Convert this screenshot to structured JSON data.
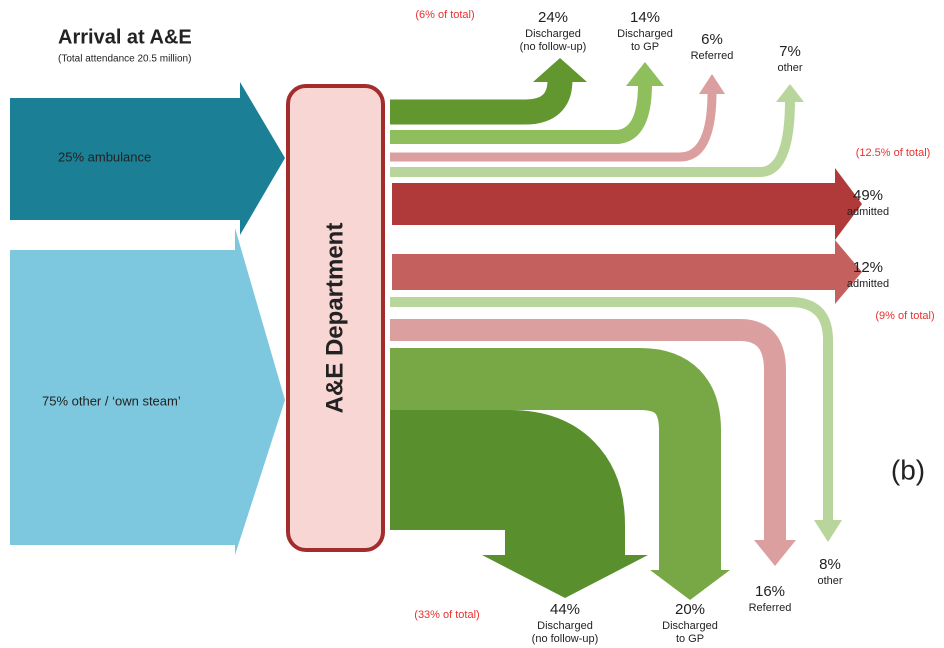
{
  "title": "Arrival at A&E",
  "subtitle": "(Total attendance 20.5 million)",
  "inputs": [
    "25% ambulance",
    "75% other / ‘own steam’"
  ],
  "department": "A&E Department",
  "panel_label": "(b)",
  "ambulance": {
    "notes": [
      "(6% of total)",
      "(12.5% of total)"
    ],
    "outcomes": [
      {
        "pct": "24%",
        "label": [
          "Discharged",
          "(no follow-up)"
        ]
      },
      {
        "pct": "14%",
        "label": [
          "Discharged",
          "to GP"
        ]
      },
      {
        "pct": "6%",
        "label": [
          "Referred"
        ]
      },
      {
        "pct": "7%",
        "label": [
          "other"
        ]
      },
      {
        "pct": "49%",
        "label": [
          "admitted"
        ]
      }
    ]
  },
  "other": {
    "notes": [
      "(9% of total)",
      "(33% of total)"
    ],
    "outcomes": [
      {
        "pct": "12%",
        "label": [
          "admitted"
        ]
      },
      {
        "pct": "8%",
        "label": [
          "other"
        ]
      },
      {
        "pct": "16%",
        "label": [
          "Referred"
        ]
      },
      {
        "pct": "20%",
        "label": [
          "Discharged",
          "to GP"
        ]
      },
      {
        "pct": "44%",
        "label": [
          "Discharged",
          "(no follow-up)"
        ]
      }
    ]
  }
}
